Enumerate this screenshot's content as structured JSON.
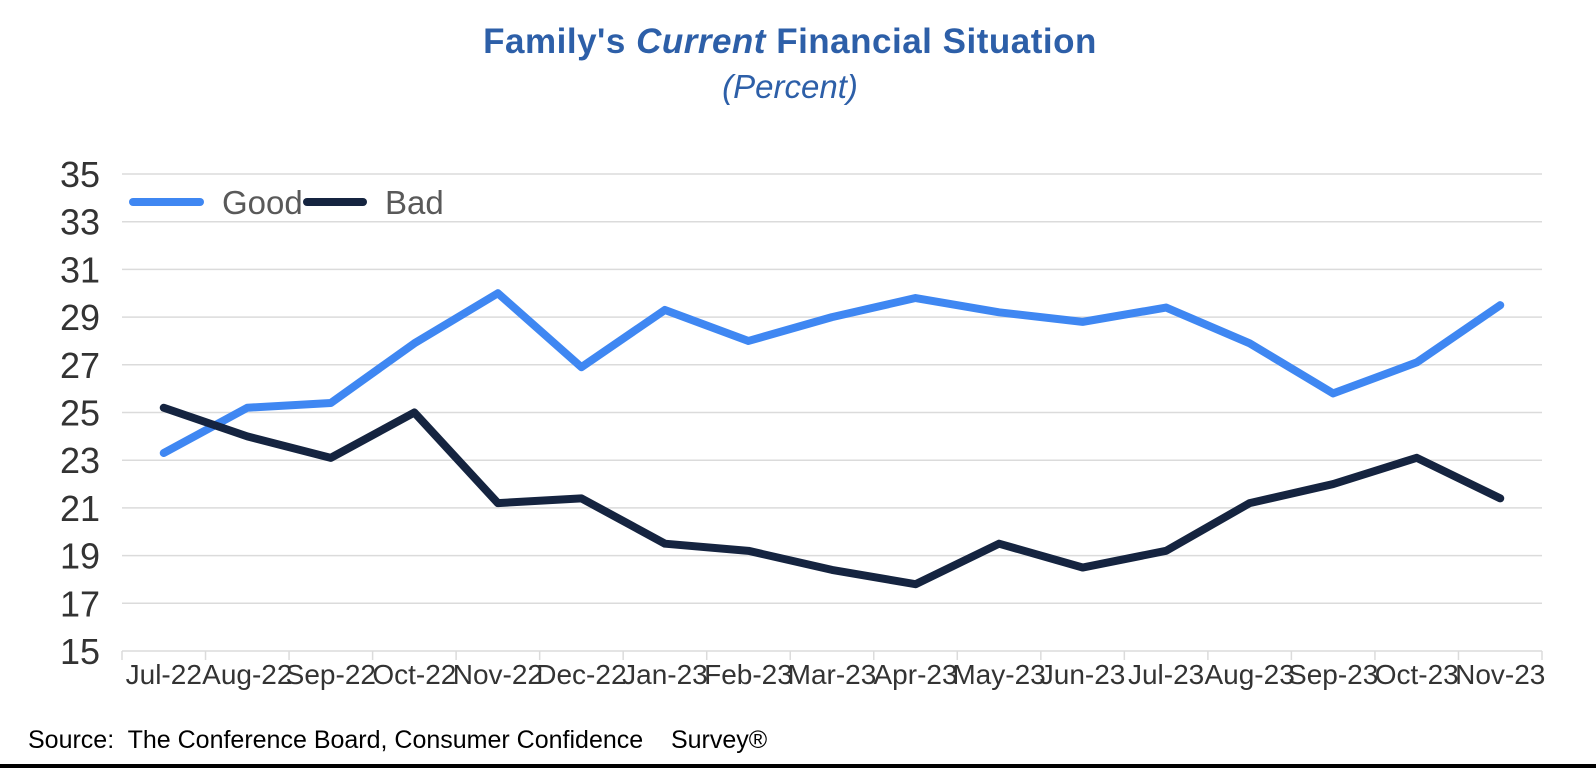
{
  "header": {
    "title_prefix": "Family's ",
    "title_italic": "Current",
    "title_suffix": " Financial Situation",
    "subtitle": "(Percent)",
    "title_color": "#2D5FA8"
  },
  "chart_data": {
    "type": "line",
    "title": "Family's Current Financial Situation (Percent)",
    "categories": [
      "Jul-22",
      "Aug-22",
      "Sep-22",
      "Oct-22",
      "Nov-22",
      "Dec-22",
      "Jan-23",
      "Feb-23",
      "Mar-23",
      "Apr-23",
      "May-23",
      "Jun-23",
      "Jul-23",
      "Aug-23",
      "Sep-23",
      "Oct-23",
      "Nov-23"
    ],
    "series": [
      {
        "name": "Good",
        "color": "#3F87F2",
        "values": [
          23.3,
          25.2,
          25.4,
          27.9,
          30.0,
          26.9,
          29.3,
          28.0,
          29.0,
          29.8,
          29.2,
          28.8,
          29.4,
          27.9,
          25.8,
          27.1,
          29.5
        ]
      },
      {
        "name": "Bad",
        "color": "#152440",
        "values": [
          25.2,
          24.0,
          23.1,
          25.0,
          21.2,
          21.4,
          19.5,
          19.2,
          18.4,
          17.8,
          19.5,
          18.5,
          19.2,
          21.2,
          22.0,
          23.1,
          21.4
        ]
      }
    ],
    "ylim": [
      15,
      35
    ],
    "ytick_step": 2,
    "yticks": [
      35,
      33,
      31,
      29,
      27,
      25,
      23,
      21,
      19,
      17,
      15
    ],
    "grid": true,
    "legend_position": "top-left",
    "styles": {
      "gridline_color": "#DBDBDB",
      "axis_label_color": "#333333",
      "legend_text_color": "#595959"
    }
  },
  "footer": {
    "source_text": "Source:  The Conference Board, Consumer Confidence    Survey®"
  }
}
